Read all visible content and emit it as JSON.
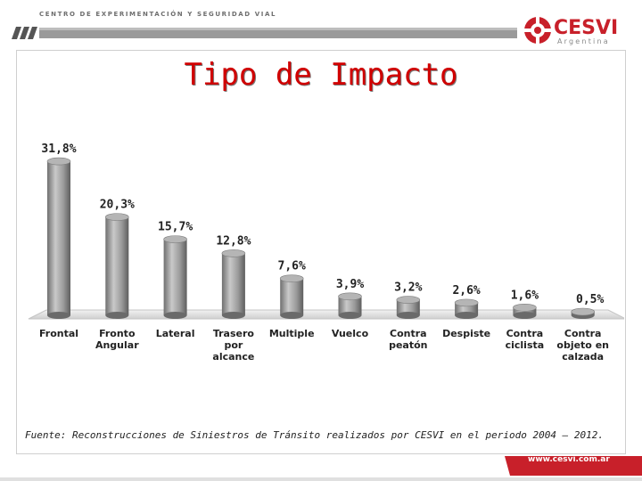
{
  "header": {
    "org_name": "CENTRO DE EXPERIMENTACIÓN Y SEGURIDAD VIAL",
    "logo_text": "CESVI",
    "logo_subtext": "Argentina"
  },
  "colors": {
    "brand_red": "#c8202a",
    "bar_gray": "#8f8f8f",
    "title_red": "#d00000"
  },
  "chart_data": {
    "type": "bar",
    "title": "Tipo de Impacto",
    "categories": [
      [
        "Frontal"
      ],
      [
        "Fronto",
        "Angular"
      ],
      [
        "Lateral"
      ],
      [
        "Trasero",
        "por",
        "alcance"
      ],
      [
        "Multiple"
      ],
      [
        "Vuelco"
      ],
      [
        "Contra",
        "peatón"
      ],
      [
        "Despiste"
      ],
      [
        "Contra",
        "ciclista"
      ],
      [
        "Contra",
        "objeto en",
        "calzada"
      ]
    ],
    "values": [
      31.8,
      20.3,
      15.7,
      12.8,
      7.6,
      3.9,
      3.2,
      2.6,
      1.6,
      0.5
    ],
    "value_labels": [
      "31,8%",
      "20,3%",
      "15,7%",
      "12,8%",
      "7,6%",
      "3,9%",
      "3,2%",
      "2,6%",
      "1,6%",
      "0,5%"
    ],
    "ylim": [
      0,
      32
    ],
    "grid": false,
    "legend": "none"
  },
  "source_note": "Fuente: Reconstrucciones de Siniestros de Tránsito realizados por CESVI en el periodo 2004 – 2012.",
  "footer": {
    "url": "www.cesvi.com.ar"
  }
}
